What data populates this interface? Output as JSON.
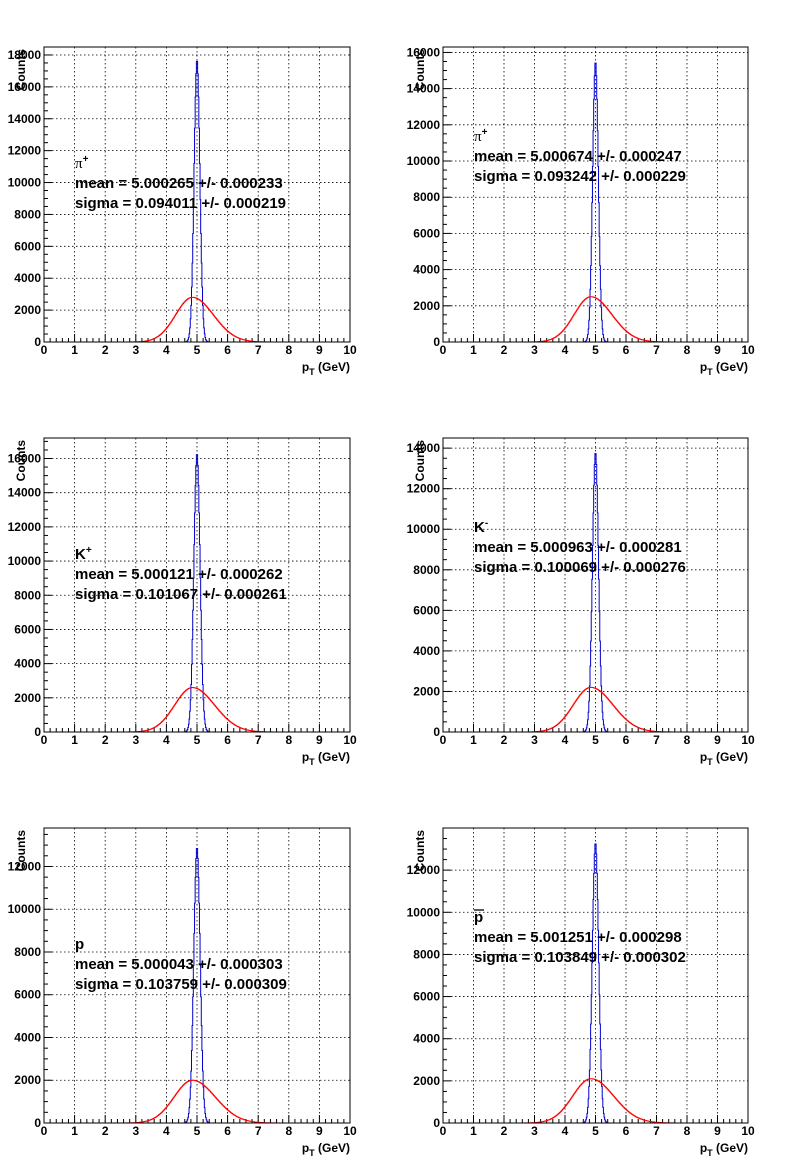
{
  "colors": {
    "truth": "#0000cc",
    "reco": "#ff0000",
    "grid": "#000000",
    "frame": "#000000"
  },
  "chart_data": [
    {
      "type": "line",
      "particle": "π",
      "particle_sup": "+",
      "particle_style": "greek",
      "fit_mean": "mean = 5.000265 +/- 0.000233",
      "fit_sigma": "sigma = 0.094011 +/- 0.000219",
      "xlabel_main": "p",
      "xlabel_sub": "T",
      "xlabel_unit": " (GeV)",
      "ylabel": "Counts",
      "xlim": [
        0,
        10
      ],
      "ylim": [
        0,
        18500
      ],
      "xticks": [
        "0",
        "1",
        "2",
        "3",
        "4",
        "5",
        "6",
        "7",
        "8",
        "9",
        "10"
      ],
      "yticks": [
        "0",
        "2000",
        "4000",
        "6000",
        "8000",
        "10000",
        "12000",
        "14000",
        "16000",
        "18000"
      ],
      "grid": true,
      "series": [
        {
          "peak": 17700,
          "center": 5.0,
          "width": 0.094
        },
        {
          "peak": 2800,
          "center": 4.85,
          "width": 0.55
        }
      ]
    },
    {
      "type": "line",
      "particle": "π",
      "particle_sup": "+",
      "particle_style": "greek",
      "fit_mean": "mean = 5.000674 +/- 0.000247",
      "fit_sigma": "sigma = 0.093242 +/- 0.000229",
      "xlabel_main": "p",
      "xlabel_sub": "T",
      "xlabel_unit": " (GeV)",
      "ylabel": "Counts",
      "xlim": [
        0,
        10
      ],
      "ylim": [
        0,
        16300
      ],
      "xticks": [
        "0",
        "1",
        "2",
        "3",
        "4",
        "5",
        "6",
        "7",
        "8",
        "9",
        "10"
      ],
      "yticks": [
        "0",
        "2000",
        "4000",
        "6000",
        "8000",
        "10000",
        "12000",
        "14000",
        "16000"
      ],
      "grid": true,
      "series": [
        {
          "peak": 15500,
          "center": 5.0,
          "width": 0.093
        },
        {
          "peak": 2500,
          "center": 4.85,
          "width": 0.55
        }
      ]
    },
    {
      "type": "line",
      "particle": "K",
      "particle_sup": "+",
      "particle_style": "bold",
      "fit_mean": "mean = 5.000121 +/- 0.000262",
      "fit_sigma": "sigma = 0.101067 +/- 0.000261",
      "xlabel_main": "p",
      "xlabel_sub": "T",
      "xlabel_unit": " (GeV)",
      "ylabel": "Counts",
      "xlim": [
        0,
        10
      ],
      "ylim": [
        0,
        17200
      ],
      "xticks": [
        "0",
        "1",
        "2",
        "3",
        "4",
        "5",
        "6",
        "7",
        "8",
        "9",
        "10"
      ],
      "yticks": [
        "0",
        "2000",
        "4000",
        "6000",
        "8000",
        "10000",
        "12000",
        "14000",
        "16000"
      ],
      "grid": true,
      "series": [
        {
          "peak": 16300,
          "center": 5.0,
          "width": 0.101
        },
        {
          "peak": 2600,
          "center": 4.85,
          "width": 0.58
        }
      ]
    },
    {
      "type": "line",
      "particle": "K",
      "particle_sup": "-",
      "particle_style": "bold",
      "fit_mean": "mean = 5.000963 +/- 0.000281",
      "fit_sigma": "sigma = 0.100069 +/- 0.000276",
      "xlabel_main": "p",
      "xlabel_sub": "T",
      "xlabel_unit": " (GeV)",
      "ylabel": "Counts",
      "xlim": [
        0,
        10
      ],
      "ylim": [
        0,
        14500
      ],
      "xticks": [
        "0",
        "1",
        "2",
        "3",
        "4",
        "5",
        "6",
        "7",
        "8",
        "9",
        "10"
      ],
      "yticks": [
        "0",
        "2000",
        "4000",
        "6000",
        "8000",
        "10000",
        "12000",
        "14000"
      ],
      "grid": true,
      "series": [
        {
          "peak": 13800,
          "center": 5.0,
          "width": 0.1
        },
        {
          "peak": 2200,
          "center": 4.85,
          "width": 0.58
        }
      ]
    },
    {
      "type": "line",
      "particle": "p",
      "particle_sup": "",
      "particle_style": "bold",
      "fit_mean": "mean = 5.000043 +/- 0.000303",
      "fit_sigma": "sigma = 0.103759 +/- 0.000309",
      "xlabel_main": "p",
      "xlabel_sub": "T",
      "xlabel_unit": " (GeV)",
      "ylabel": "Counts",
      "xlim": [
        0,
        10
      ],
      "ylim": [
        0,
        13800
      ],
      "xticks": [
        "0",
        "1",
        "2",
        "3",
        "4",
        "5",
        "6",
        "7",
        "8",
        "9",
        "10"
      ],
      "yticks": [
        "0",
        "2000",
        "4000",
        "6000",
        "8000",
        "10000",
        "12000"
      ],
      "grid": true,
      "series": [
        {
          "peak": 12900,
          "center": 5.0,
          "width": 0.104
        },
        {
          "peak": 2000,
          "center": 4.85,
          "width": 0.6
        }
      ]
    },
    {
      "type": "line",
      "particle": "p",
      "particle_sup": "",
      "particle_style": "bar",
      "fit_mean": "mean = 5.001251 +/- 0.000298",
      "fit_sigma": "sigma = 0.103849 +/- 0.000302",
      "xlabel_main": "p",
      "xlabel_sub": "T",
      "xlabel_unit": " (GeV)",
      "ylabel": "Counts",
      "xlim": [
        0,
        10
      ],
      "ylim": [
        0,
        14000
      ],
      "xticks": [
        "0",
        "1",
        "2",
        "3",
        "4",
        "5",
        "6",
        "7",
        "8",
        "9",
        "10"
      ],
      "yticks": [
        "0",
        "2000",
        "4000",
        "6000",
        "8000",
        "10000",
        "12000"
      ],
      "grid": true,
      "series": [
        {
          "peak": 13300,
          "center": 5.0,
          "width": 0.104
        },
        {
          "peak": 2100,
          "center": 4.85,
          "width": 0.6
        }
      ]
    }
  ]
}
